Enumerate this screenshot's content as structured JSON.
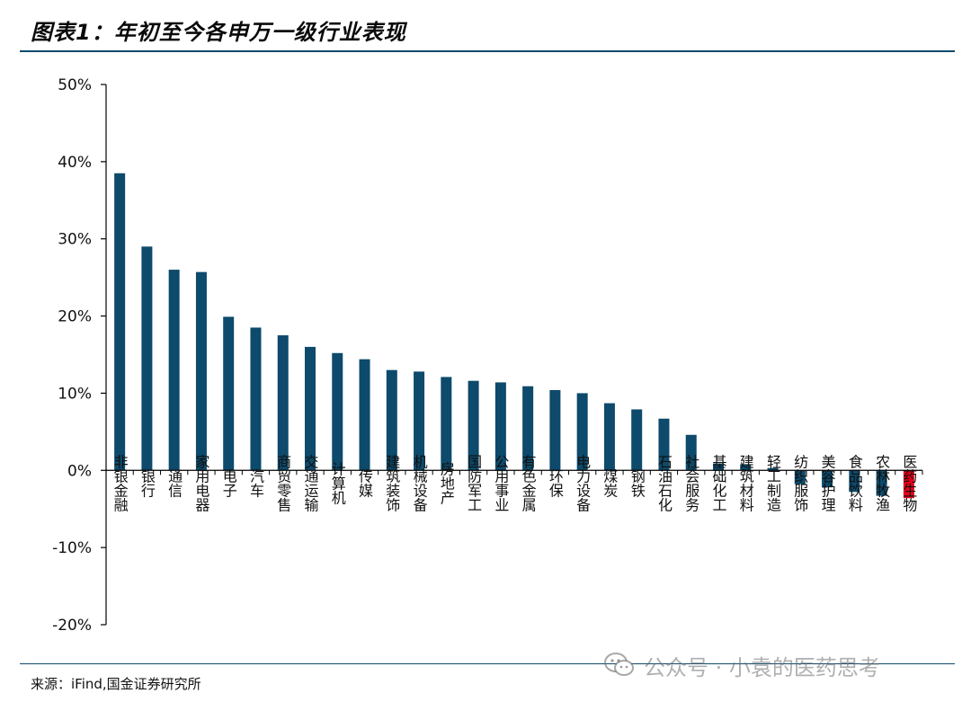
{
  "title": "图表1：年初至今各申万一级行业表现",
  "source": "来源：iFind,国金证券研究所",
  "watermark": "公众号 · 小袁的医药思考",
  "watermark_icon": "wechat-icon",
  "colors": {
    "bar": "#0d4a6b",
    "highlight": "#e3001b",
    "rule": "#0d4a6b"
  },
  "chart_data": {
    "type": "bar",
    "title": "",
    "xlabel": "",
    "ylabel": "",
    "ylim": [
      -0.2,
      0.5
    ],
    "yticks": [
      0.5,
      0.4,
      0.3,
      0.2,
      0.1,
      0.0,
      -0.1,
      -0.2
    ],
    "ytick_labels": [
      "50%",
      "40%",
      "30%",
      "20%",
      "10%",
      "0%",
      "-10%",
      "-20%"
    ],
    "grid": false,
    "legend": "none",
    "categories": [
      "非银金融",
      "银行",
      "通信",
      "家用电器",
      "电子",
      "汽车",
      "商贸零售",
      "交通运输",
      "计算机",
      "传媒",
      "建筑装饰",
      "机械设备",
      "房地产",
      "国防军工",
      "公用事业",
      "有色金属",
      "环保",
      "电力设备",
      "煤炭",
      "钢铁",
      "石油石化",
      "社会服务",
      "基础化工",
      "建筑材料",
      "轻工制造",
      "纺织服饰",
      "美容护理",
      "食品饮料",
      "农林牧渔",
      "医药生物"
    ],
    "values": [
      0.385,
      0.29,
      0.26,
      0.257,
      0.199,
      0.185,
      0.175,
      0.16,
      0.152,
      0.144,
      0.13,
      0.128,
      0.121,
      0.116,
      0.114,
      0.109,
      0.104,
      0.1,
      0.087,
      0.079,
      0.067,
      0.046,
      0.009,
      0.008,
      0.003,
      -0.018,
      -0.022,
      -0.028,
      -0.033,
      -0.036
    ],
    "highlight_index": 29
  }
}
